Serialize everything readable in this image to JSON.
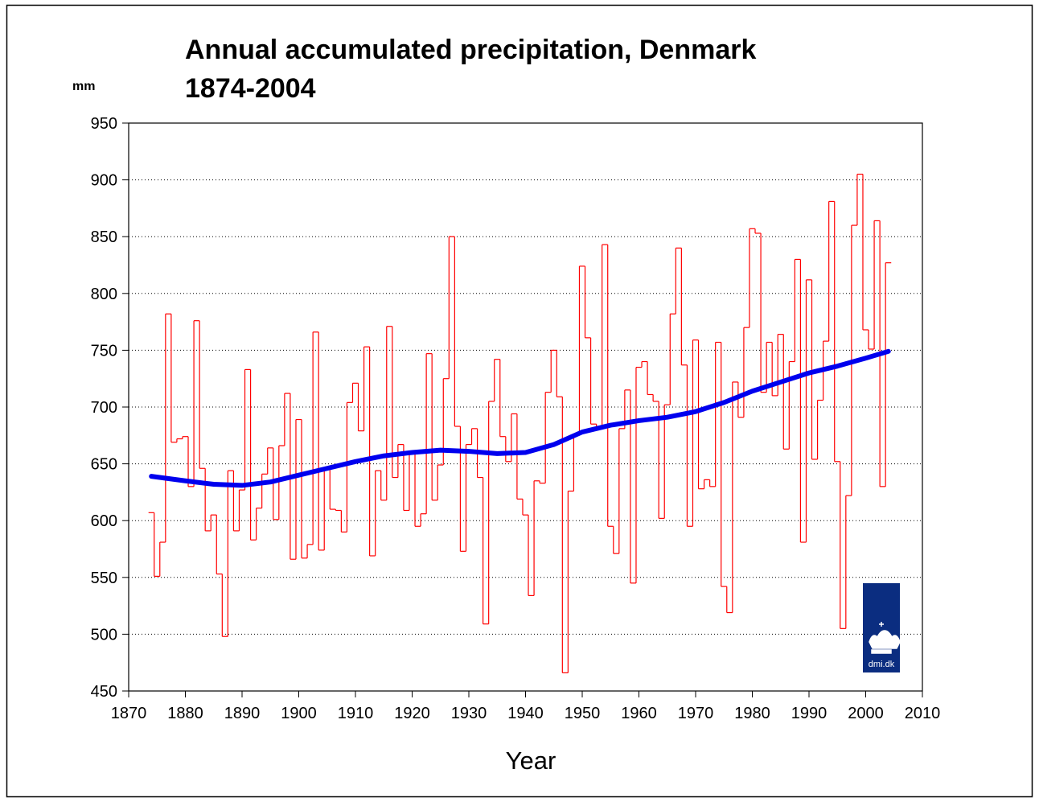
{
  "chart_data": {
    "type": "line",
    "title": "Annual accumulated precipitation, Denmark",
    "subtitle": "1874-2004",
    "y_label": "mm",
    "x_label": "Year",
    "logo_text": "dmi.dk",
    "xlim": [
      1870,
      2010
    ],
    "xticks": [
      1870,
      1880,
      1890,
      1900,
      1910,
      1920,
      1930,
      1940,
      1950,
      1960,
      1970,
      1980,
      1990,
      2000,
      2010
    ],
    "ylim": [
      450,
      950
    ],
    "yticks": [
      450,
      500,
      550,
      600,
      650,
      700,
      750,
      800,
      850,
      900,
      950
    ],
    "grid": true,
    "series": [
      {
        "color": "#ff0000",
        "drawstyle": "steps",
        "x": [
          1874,
          1875,
          1876,
          1877,
          1878,
          1879,
          1880,
          1881,
          1882,
          1883,
          1884,
          1885,
          1886,
          1887,
          1888,
          1889,
          1890,
          1891,
          1892,
          1893,
          1894,
          1895,
          1896,
          1897,
          1898,
          1899,
          1900,
          1901,
          1902,
          1903,
          1904,
          1905,
          1906,
          1907,
          1908,
          1909,
          1910,
          1911,
          1912,
          1913,
          1914,
          1915,
          1916,
          1917,
          1918,
          1919,
          1920,
          1921,
          1922,
          1923,
          1924,
          1925,
          1926,
          1927,
          1928,
          1929,
          1930,
          1931,
          1932,
          1933,
          1934,
          1935,
          1936,
          1937,
          1938,
          1939,
          1940,
          1941,
          1942,
          1943,
          1944,
          1945,
          1946,
          1947,
          1948,
          1949,
          1950,
          1951,
          1952,
          1953,
          1954,
          1955,
          1956,
          1957,
          1958,
          1959,
          1960,
          1961,
          1962,
          1963,
          1964,
          1965,
          1966,
          1967,
          1968,
          1969,
          1970,
          1971,
          1972,
          1973,
          1974,
          1975,
          1976,
          1977,
          1978,
          1979,
          1980,
          1981,
          1982,
          1983,
          1984,
          1985,
          1986,
          1987,
          1988,
          1989,
          1990,
          1991,
          1992,
          1993,
          1994,
          1995,
          1996,
          1997,
          1998,
          1999,
          2000,
          2001,
          2002,
          2003,
          2004
        ],
        "values": [
          607,
          551,
          581,
          782,
          669,
          672,
          674,
          630,
          776,
          646,
          591,
          605,
          553,
          498,
          644,
          591,
          627,
          733,
          583,
          611,
          641,
          664,
          601,
          666,
          712,
          566,
          689,
          567,
          579,
          766,
          574,
          645,
          610,
          609,
          590,
          704,
          721,
          679,
          753,
          569,
          644,
          618,
          771,
          638,
          667,
          609,
          660,
          595,
          606,
          747,
          618,
          649,
          725,
          850,
          683,
          573,
          667,
          681,
          638,
          509,
          705,
          742,
          674,
          652,
          694,
          619,
          605,
          534,
          635,
          633,
          713,
          750,
          709,
          466,
          626,
          675,
          824,
          761,
          685,
          683,
          843,
          595,
          571,
          681,
          715,
          545,
          735,
          740,
          711,
          705,
          602,
          702,
          782,
          840,
          737,
          595,
          759,
          628,
          636,
          630,
          757,
          542,
          519,
          722,
          691,
          770,
          857,
          853,
          713,
          757,
          710,
          764,
          663,
          740,
          830,
          581,
          812,
          654,
          706,
          758,
          881,
          652,
          505,
          622,
          860,
          905,
          768,
          751,
          864,
          630,
          827
        ]
      },
      {
        "color": "#0000ee",
        "drawstyle": "line",
        "x": [
          1874,
          1880,
          1885,
          1890,
          1895,
          1900,
          1905,
          1910,
          1915,
          1920,
          1925,
          1930,
          1935,
          1940,
          1945,
          1950,
          1955,
          1960,
          1965,
          1970,
          1975,
          1980,
          1985,
          1990,
          1995,
          2000,
          2004
        ],
        "values": [
          639,
          635,
          632,
          631,
          634,
          640,
          646,
          652,
          657,
          660,
          662,
          661,
          659,
          660,
          667,
          678,
          684,
          688,
          691,
          696,
          704,
          714,
          722,
          730,
          736,
          743,
          749
        ]
      }
    ]
  }
}
